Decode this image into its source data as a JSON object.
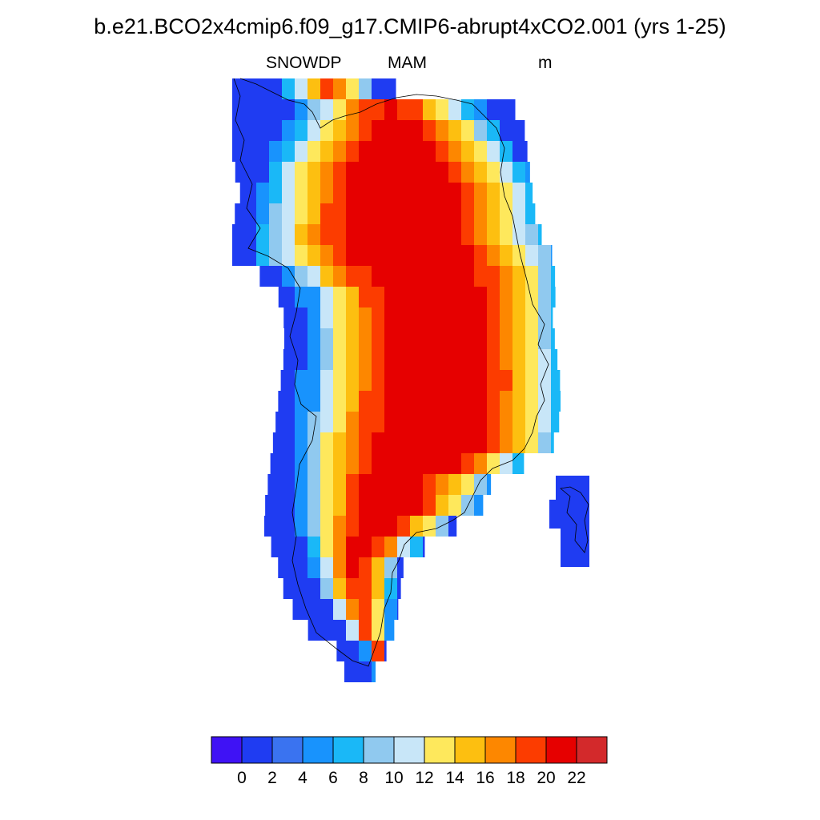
{
  "chart_data": {
    "type": "heatmap",
    "title": "b.e21.BCO2x4cmip6.f09_g17.CMIP6-abrupt4xCO2.001 (yrs 1-25)",
    "left_label": "SNOWDP",
    "center_label": "MAM",
    "units": "m",
    "colorbar": {
      "colors": [
        "#3f12f5",
        "#1f3cf2",
        "#3a73f0",
        "#1893fd",
        "#1ab8f7",
        "#90c9ef",
        "#c8e6f8",
        "#fee85c",
        "#fdbf10",
        "#fd8700",
        "#fc3c00",
        "#e60000",
        "#d3292b"
      ],
      "tick_labels": [
        "0",
        "2",
        "4",
        "6",
        "8",
        "10",
        "12",
        "14",
        "16",
        "18",
        "20",
        "22"
      ]
    }
  }
}
